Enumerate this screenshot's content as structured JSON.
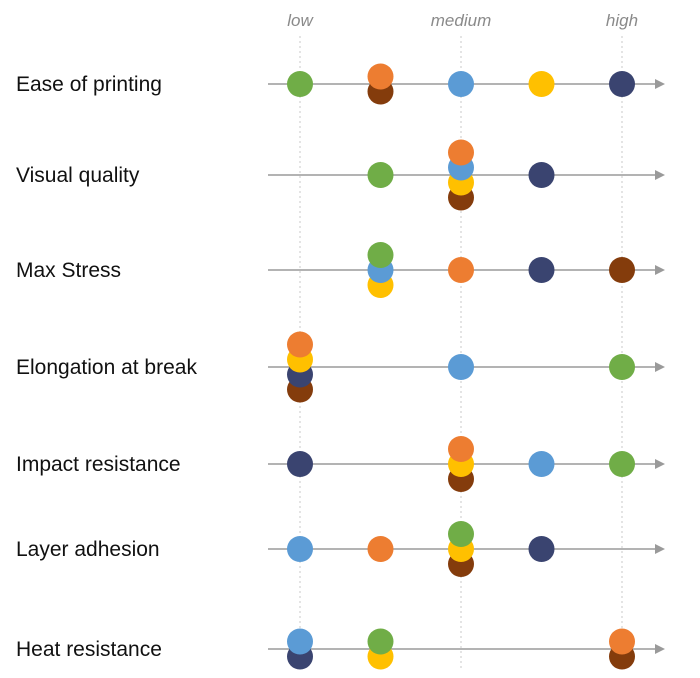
{
  "chart_data": {
    "type": "scatter",
    "title": "",
    "xlabel": "",
    "ylabel": "",
    "scale_levels": [
      {
        "key": "low",
        "label": "low",
        "value": 0
      },
      {
        "key": "medium",
        "label": "medium",
        "value": 2
      },
      {
        "key": "high",
        "label": "high",
        "value": 4
      }
    ],
    "xlim": [
      0,
      4
    ],
    "categories": [
      "Ease of printing",
      "Visual quality",
      "Max Stress",
      "Elongation at break",
      "Impact resistance",
      "Layer adhesion",
      "Heat resistance"
    ],
    "series": [
      {
        "color": "#70AD47",
        "values": [
          0,
          1,
          1,
          4,
          4,
          2,
          1
        ]
      },
      {
        "color": "#ED7D31",
        "values": [
          1,
          2,
          2,
          0,
          2,
          1,
          4
        ]
      },
      {
        "color": "#5B9BD5",
        "values": [
          2,
          2,
          1,
          2,
          3,
          0,
          0
        ]
      },
      {
        "color": "#FFC000",
        "values": [
          3,
          2,
          1,
          0,
          2,
          2,
          1
        ]
      },
      {
        "color": "#3A4470",
        "values": [
          4,
          3,
          3,
          0,
          0,
          3,
          0
        ]
      },
      {
        "color": "#843C0C",
        "values": [
          1,
          2,
          4,
          0,
          2,
          2,
          4
        ]
      }
    ]
  }
}
